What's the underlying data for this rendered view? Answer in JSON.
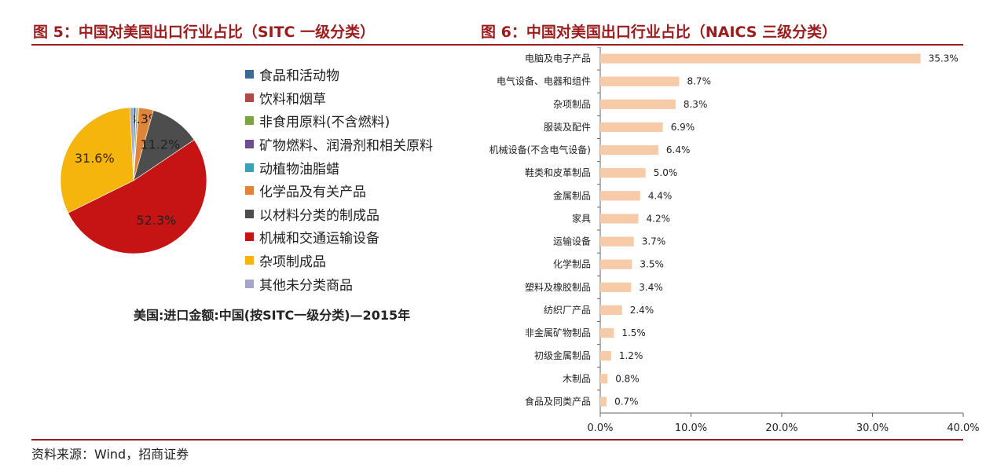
{
  "titles": {
    "fig5": "图 5：中国对美国出口行业占比（SITC 一级分类）",
    "fig6": "图 6：中国对美国出口行业占比（NAICS 三级分类）"
  },
  "source": "资料来源：Wind，招商证券",
  "chart_data": [
    {
      "type": "pie",
      "caption": "美国:进口金额:中国(按SITC一级分类)—2015年",
      "categories": [
        "食品和活动物",
        "饮料和烟草",
        "非食用原料(不含燃料)",
        "矿物燃料、润滑剂和相关原料",
        "动植物油脂蜡",
        "化学品及有关产品",
        "以材料分类的制成品",
        "机械和交通运输设备",
        "杂项制成品",
        "其他未分类商品"
      ],
      "values": [
        0.5,
        0.1,
        0.4,
        0.1,
        0.02,
        3.3,
        11.2,
        52.3,
        31.6,
        0.8
      ],
      "data_labels": [
        "",
        "",
        "",
        "",
        "",
        "3.3%",
        "11.2%",
        "52.3%",
        "31.6%",
        ""
      ],
      "colors": [
        "#3b6b94",
        "#b04a45",
        "#7da443",
        "#6b4f8f",
        "#3aa1b6",
        "#e0843a",
        "#4d4d4d",
        "#c61414",
        "#f5b50c",
        "#a5a5c8"
      ],
      "legend_placement": "right"
    },
    {
      "type": "bar",
      "orientation": "horizontal",
      "categories": [
        "电脑及电子产品",
        "电气设备、电器和组件",
        "杂项制品",
        "服装及配件",
        "机械设备(不含电气设备)",
        "鞋类和皮革制品",
        "金属制品",
        "家具",
        "运输设备",
        "化学制品",
        "塑料及橡胶制品",
        "纺织厂产品",
        "非金属矿物制品",
        "初级金属制品",
        "木制品",
        "食品及同类产品"
      ],
      "values": [
        35.3,
        8.7,
        8.3,
        6.9,
        6.4,
        5.0,
        4.4,
        4.2,
        3.7,
        3.5,
        3.4,
        2.4,
        1.5,
        1.2,
        0.8,
        0.7
      ],
      "data_labels": [
        "35.3%",
        "8.7%",
        "8.3%",
        "6.9%",
        "6.4%",
        "5.0%",
        "4.4%",
        "4.2%",
        "3.7%",
        "3.5%",
        "3.4%",
        "2.4%",
        "1.5%",
        "1.2%",
        "0.8%",
        "0.7%"
      ],
      "xlim": [
        0,
        40
      ],
      "xticks": [
        "0.0%",
        "10.0%",
        "20.0%",
        "30.0%",
        "40.0%"
      ],
      "bar_color": "#f7cba8",
      "grid": false
    }
  ]
}
